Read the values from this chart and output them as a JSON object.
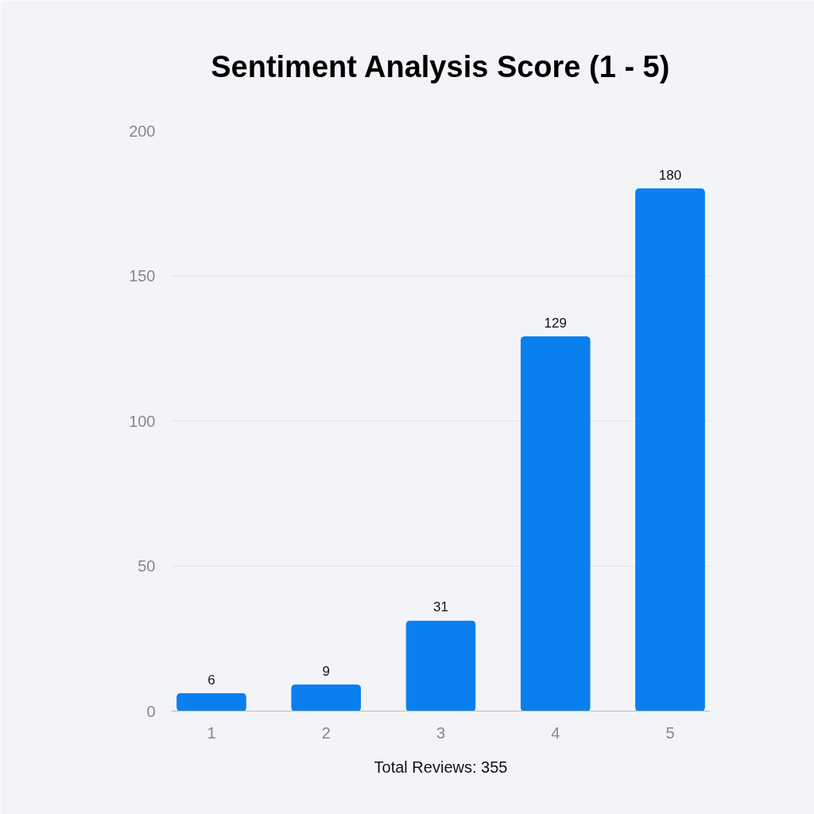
{
  "chart_data": {
    "type": "bar",
    "title": "Sentiment Analysis Score (1 - 5)",
    "categories": [
      "1",
      "2",
      "3",
      "4",
      "5"
    ],
    "values": [
      6,
      9,
      31,
      129,
      180
    ],
    "color": "#0a7ff0",
    "ylim": [
      0,
      200
    ],
    "yticks": [
      0,
      50,
      100,
      150,
      200
    ],
    "grid": "y",
    "data_labels": true,
    "annotations": [
      "Total Reviews: 355"
    ]
  }
}
